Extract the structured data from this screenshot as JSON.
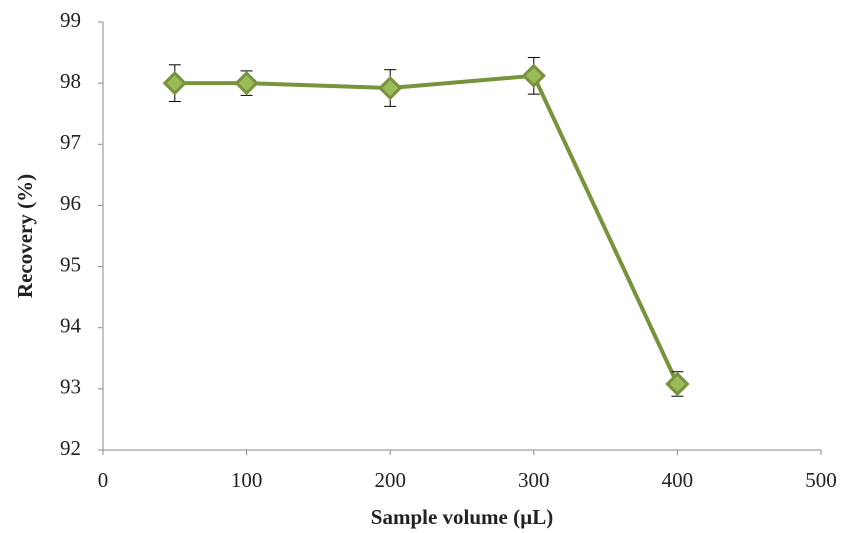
{
  "chart_data": {
    "type": "line",
    "xlabel": "Sample volume (µL)",
    "ylabel": "Recovery (%)",
    "x": [
      50,
      100,
      200,
      300,
      400
    ],
    "values": [
      98.0,
      98.0,
      97.92,
      98.12,
      93.08
    ],
    "errors": [
      0.3,
      0.2,
      0.3,
      0.3,
      0.2
    ],
    "color": "#77933c",
    "marker_color": "#9bbb59",
    "xlim": [
      0,
      500
    ],
    "xticks": [
      0,
      100,
      200,
      300,
      400,
      500
    ],
    "ylim": [
      92,
      99
    ],
    "yticks": [
      92,
      93,
      94,
      95,
      96,
      97,
      98,
      99
    ],
    "grid": false
  }
}
